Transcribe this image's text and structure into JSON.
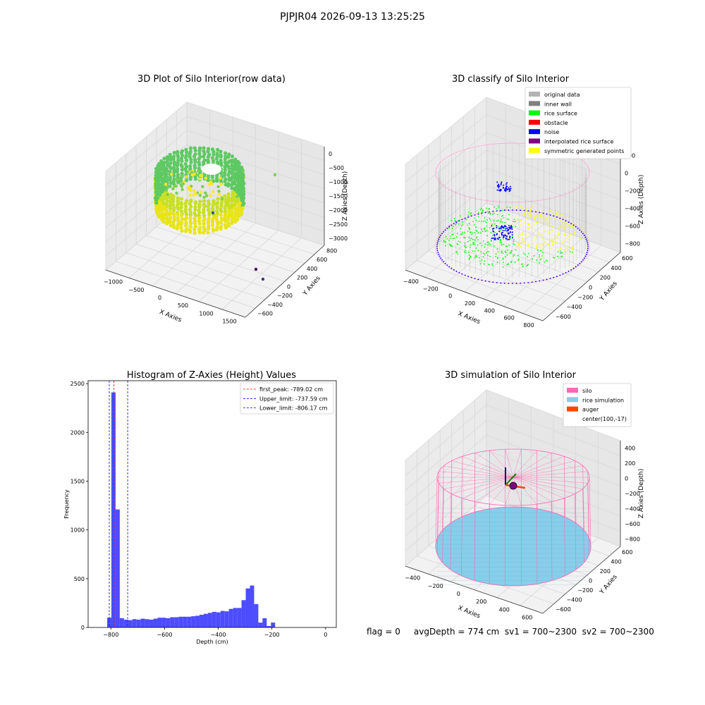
{
  "suptitle": "PJPJR04 2026-09-13 13:25:25",
  "footer": "flag = 0     avgDepth = 774 cm  sv1 = 700~2300  sv2 = 700~2300",
  "colors": {
    "hist_bar": "#4d4dff",
    "first_peak_line": "#ff0000",
    "limit_line": "#0000ff",
    "original": "#b3b3b3",
    "inner_wall": "#808080",
    "rice_surface": "#00ff00",
    "obstacle": "#ff0000",
    "noise": "#0000ff",
    "interpolated": "#800080",
    "symmetric": "#ffff00",
    "silo": "#ff69b4",
    "rice_sim": "#87ceeb",
    "auger": "#ff4500"
  },
  "chart_data": [
    {
      "type": "scatter",
      "projection": "3d",
      "title": "3D Plot of Silo Interior(row data)",
      "xlabel": "X Axies",
      "ylabel": "Y Axies",
      "zlabel": "Z Axies (Depth)",
      "x_ticks": [
        "−1000",
        "−500",
        "0",
        "500",
        "1000",
        "1500"
      ],
      "y_ticks": [
        "800",
        "600",
        "400",
        "200",
        "0",
        "−200",
        "−400",
        "−600"
      ],
      "z_ticks": [
        "0",
        "−500",
        "−1000",
        "−1500",
        "−2000",
        "−2500",
        "−3000"
      ],
      "colormap": "viridis",
      "grid": true
    },
    {
      "type": "scatter",
      "projection": "3d",
      "title": "3D classify of Silo Interior",
      "xlabel": "X Axies",
      "ylabel": "Y Axies",
      "zlabel": "Z Axies (Depth)",
      "x_ticks": [
        "−400",
        "−200",
        "0",
        "200",
        "400",
        "600",
        "800"
      ],
      "y_ticks": [
        "600",
        "400",
        "200",
        "0",
        "−200",
        "−400",
        "−600"
      ],
      "z_ticks": [
        "200",
        "0",
        "−200",
        "−400",
        "−600",
        "−800"
      ],
      "legend": [
        "original data",
        "inner wall",
        "rice surface",
        "obstacle",
        "noise",
        "interpolated rice surface",
        "symmetric generated points"
      ],
      "legend_position": "top-right",
      "grid": true
    },
    {
      "type": "bar",
      "title": "Histogram of Z-Axies (Height) Values",
      "xlabel": "Depth (cm)",
      "ylabel": "Frequency",
      "xlim": [
        -885,
        40
      ],
      "ylim": [
        0,
        2530
      ],
      "x_ticks": [
        -800,
        -600,
        -400,
        -200,
        0
      ],
      "y_ticks": [
        0,
        500,
        1000,
        1500,
        2000,
        2500
      ],
      "bin_edges_start": -814,
      "bin_width": 15.65,
      "values": [
        100,
        2410,
        1210,
        95,
        80,
        75,
        85,
        80,
        90,
        85,
        80,
        90,
        100,
        100,
        95,
        105,
        105,
        110,
        110,
        110,
        115,
        120,
        130,
        140,
        150,
        160,
        155,
        170,
        165,
        190,
        200,
        200,
        280,
        400,
        430,
        240,
        50,
        95,
        15,
        50
      ],
      "vlines": [
        {
          "label": "first_peak: -789.02 cm",
          "x": -789.02,
          "color": "#ff0000"
        },
        {
          "label": "Upper_limit: -737.59 cm",
          "x": -737.59,
          "color": "#0000ff"
        },
        {
          "label": "Lower_limit: -806.17 cm",
          "x": -806.17,
          "color": "#0000ff"
        }
      ],
      "legend_position": "top-right",
      "grid": false
    },
    {
      "type": "scatter",
      "projection": "3d",
      "title": "3D simulation of Silo Interior",
      "xlabel": "X Axies",
      "ylabel": "Y Axies",
      "zlabel": "Z Axies (Depth)",
      "x_ticks": [
        "−400",
        "−200",
        "0",
        "200",
        "400",
        "600"
      ],
      "y_ticks": [
        "600",
        "400",
        "200",
        "0",
        "−200",
        "−400",
        "−600"
      ],
      "z_ticks": [
        "400",
        "200",
        "0",
        "−200",
        "−400",
        "−600",
        "−800"
      ],
      "legend": [
        "silo",
        "rice simulation",
        "auger",
        "center(100,-17)"
      ],
      "legend_position": "top-right",
      "grid": true
    }
  ]
}
